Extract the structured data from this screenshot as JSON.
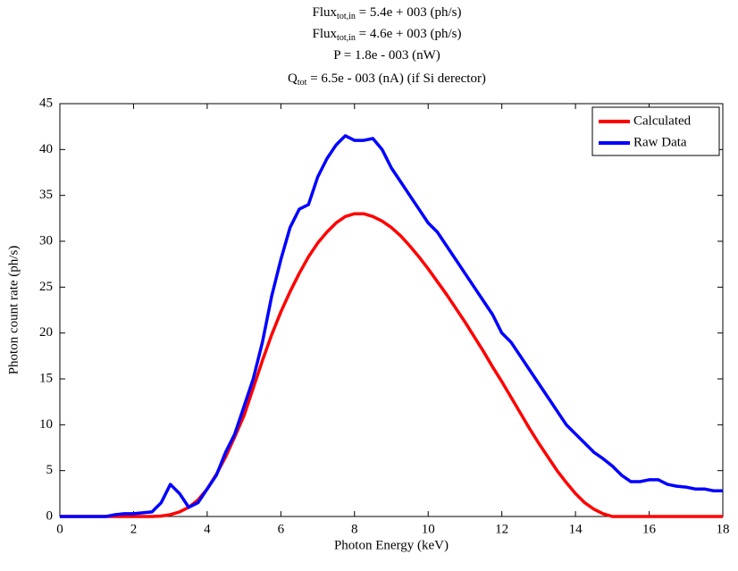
{
  "chart_data": {
    "type": "line",
    "title_lines": [
      {
        "text": "Flux",
        "sub": "tot,in",
        "after": " = 5.4e + 003 (ph/s)"
      },
      {
        "text": "Flux",
        "sub": "tot,in",
        "after": " = 4.6e + 003 (ph/s)"
      },
      {
        "text": "P = 1.8e - 003 (nW)"
      },
      {
        "text": "Q",
        "sub": "tot",
        "after": " = 6.5e - 003 (nA) (if Si derector)"
      }
    ],
    "x_label": "Photon Energy (keV)",
    "y_label": "Photon count rate (ph/s)",
    "xlim": [
      0,
      18
    ],
    "ylim": [
      0,
      45
    ],
    "xticks": [
      0,
      2,
      4,
      6,
      8,
      10,
      12,
      14,
      16,
      18
    ],
    "yticks": [
      0,
      5,
      10,
      15,
      20,
      25,
      30,
      35,
      40,
      45
    ],
    "legend": "upper right",
    "x": [
      0,
      0.25,
      0.5,
      0.75,
      1,
      1.25,
      1.5,
      1.75,
      2,
      2.25,
      2.5,
      2.75,
      3,
      3.25,
      3.5,
      3.75,
      4,
      4.25,
      4.5,
      4.75,
      5,
      5.25,
      5.5,
      5.75,
      6,
      6.25,
      6.5,
      6.75,
      7,
      7.25,
      7.5,
      7.75,
      8,
      8.25,
      8.5,
      8.75,
      9,
      9.25,
      9.5,
      9.75,
      10,
      10.25,
      10.5,
      10.75,
      11,
      11.25,
      11.5,
      11.75,
      12,
      12.25,
      12.5,
      12.75,
      13,
      13.25,
      13.5,
      13.75,
      14,
      14.25,
      14.5,
      14.75,
      15,
      15.25,
      15.5,
      15.75,
      16,
      16.25,
      16.5,
      16.75,
      17,
      17.25,
      17.5,
      17.75,
      18
    ],
    "series": [
      {
        "name": "Calculated",
        "color": "#ff0000",
        "values": [
          0,
          0,
          0,
          0,
          0,
          0,
          0,
          0,
          0,
          0,
          0,
          0.05,
          0.2,
          0.5,
          1,
          1.8,
          3,
          4.6,
          6.5,
          8.7,
          11,
          14,
          17,
          19.8,
          22.3,
          24.5,
          26.5,
          28.3,
          29.8,
          31,
          32,
          32.7,
          33,
          33,
          32.7,
          32.2,
          31.5,
          30.6,
          29.5,
          28.3,
          27,
          25.6,
          24.2,
          22.7,
          21.2,
          19.6,
          18,
          16.3,
          14.7,
          13,
          11.3,
          9.6,
          8,
          6.5,
          5,
          3.7,
          2.5,
          1.5,
          0.8,
          0.3,
          0,
          0,
          0,
          0,
          0,
          0,
          0,
          0,
          0,
          0,
          0,
          0,
          0
        ]
      },
      {
        "name": "Raw Data",
        "color": "#0000ff",
        "values": [
          0,
          0,
          0,
          0,
          0,
          0,
          0.2,
          0.3,
          0.3,
          0.4,
          0.5,
          1.5,
          3.5,
          2.5,
          1,
          1.5,
          3,
          4.5,
          7,
          9,
          12,
          15,
          19,
          24,
          28,
          31.5,
          33.5,
          34,
          37,
          39,
          40.5,
          41.5,
          41,
          41,
          41.2,
          40,
          38,
          36.5,
          35,
          33.5,
          32,
          31,
          29.5,
          28,
          26.5,
          25,
          23.5,
          22,
          20,
          19,
          17.5,
          16,
          14.5,
          13,
          11.5,
          10,
          9,
          8,
          7,
          6.3,
          5.5,
          4.5,
          3.8,
          3.8,
          4,
          4,
          3.5,
          3.3,
          3.2,
          3,
          3,
          2.8,
          2.8
        ]
      }
    ]
  }
}
